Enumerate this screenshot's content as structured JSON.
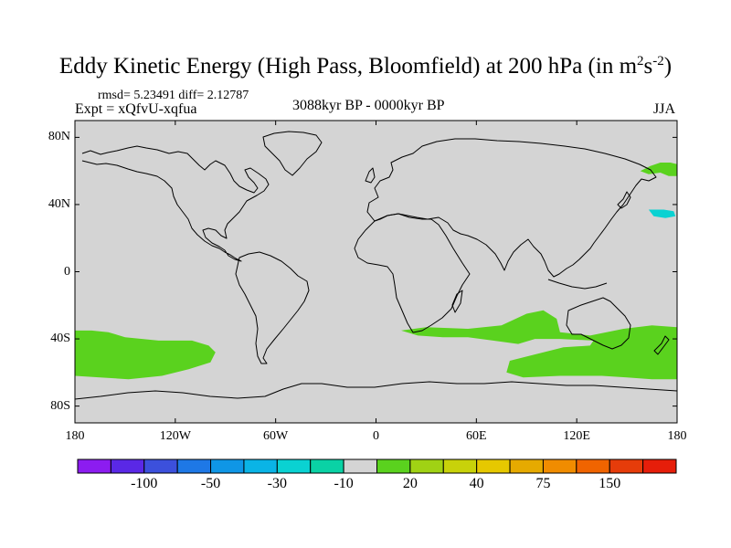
{
  "chart_data": {
    "type": "heatmap",
    "title": "Eddy Kinetic Energy (High Pass, Bloomfield) at 200 hPa (in m",
    "title_unit_sup1": "2",
    "title_unit_mid": "s",
    "title_unit_sup2": "-2",
    "title_unit_end": ")",
    "stats": "rmsd= 5.23491 diff= 2.12787",
    "experiment": "Expt = xQfvU-xqfua",
    "period": "3088kyr BP - 0000kyr BP",
    "season": "JJA",
    "projection": "cylindrical equidistant",
    "lon_range": [
      -180,
      180
    ],
    "lat_range": [
      -90,
      90
    ],
    "x_ticks": [
      {
        "lon": -180,
        "label": "180"
      },
      {
        "lon": -120,
        "label": "120W"
      },
      {
        "lon": -60,
        "label": "60W"
      },
      {
        "lon": 0,
        "label": "0"
      },
      {
        "lon": 60,
        "label": "60E"
      },
      {
        "lon": 120,
        "label": "120E"
      },
      {
        "lon": 180,
        "label": "180"
      }
    ],
    "y_ticks": [
      {
        "lat": 80,
        "label": "80N"
      },
      {
        "lat": 40,
        "label": "40N"
      },
      {
        "lat": 0,
        "label": "0"
      },
      {
        "lat": -40,
        "label": "40S"
      },
      {
        "lat": -80,
        "label": "80S"
      }
    ],
    "background_color": "#d4d4d4",
    "colorbar": {
      "colors": [
        "#8c1cf0",
        "#5a28e6",
        "#3c50dc",
        "#1e78e6",
        "#0f96e6",
        "#0ab4e6",
        "#0ad2d2",
        "#0ad2a5",
        "#d4d4d4",
        "#5ad21e",
        "#a0d214",
        "#c8d20a",
        "#e6c800",
        "#e6aa00",
        "#f08c00",
        "#f06400",
        "#e63c0a",
        "#e61e0a"
      ],
      "labels": [
        {
          "index": 2,
          "label": "-100"
        },
        {
          "index": 4,
          "label": "-50"
        },
        {
          "index": 6,
          "label": "-30"
        },
        {
          "index": 8,
          "label": "-10"
        },
        {
          "index": 10,
          "label": "20"
        },
        {
          "index": 12,
          "label": "40"
        },
        {
          "index": 14,
          "label": "75"
        },
        {
          "index": 16,
          "label": "150"
        }
      ]
    },
    "anomaly_regions": [
      {
        "name": "south-pacific",
        "color": "#5ad21e",
        "value_bin": "10 to 20",
        "outline": [
          [
            -180,
            -35
          ],
          [
            -170,
            -35
          ],
          [
            -160,
            -36
          ],
          [
            -150,
            -39
          ],
          [
            -130,
            -41
          ],
          [
            -110,
            -41
          ],
          [
            -100,
            -44
          ],
          [
            -96,
            -48
          ],
          [
            -99,
            -54
          ],
          [
            -112,
            -58
          ],
          [
            -128,
            -62
          ],
          [
            -148,
            -64
          ],
          [
            -165,
            -63
          ],
          [
            -180,
            -62
          ]
        ]
      },
      {
        "name": "south-indian",
        "color": "#5ad21e",
        "value_bin": "10 to 20",
        "outline": [
          [
            15,
            -35
          ],
          [
            30,
            -33
          ],
          [
            55,
            -34
          ],
          [
            75,
            -32
          ],
          [
            90,
            -25
          ],
          [
            100,
            -23
          ],
          [
            108,
            -28
          ],
          [
            110,
            -36
          ],
          [
            128,
            -38
          ],
          [
            148,
            -34
          ],
          [
            165,
            -32
          ],
          [
            180,
            -33
          ],
          [
            180,
            -64
          ],
          [
            165,
            -64
          ],
          [
            150,
            -63
          ],
          [
            135,
            -62
          ],
          [
            110,
            -62
          ],
          [
            88,
            -63
          ],
          [
            78,
            -60
          ],
          [
            80,
            -53
          ],
          [
            96,
            -49
          ],
          [
            112,
            -45
          ],
          [
            128,
            -44
          ],
          [
            130,
            -41
          ],
          [
            110,
            -40
          ],
          [
            95,
            -40
          ],
          [
            85,
            -43
          ],
          [
            70,
            -41
          ],
          [
            55,
            -39
          ],
          [
            40,
            -39
          ],
          [
            25,
            -38
          ]
        ]
      },
      {
        "name": "kamchatka",
        "color": "#5ad21e",
        "value_bin": "10 to 20",
        "outline": [
          [
            158,
            60
          ],
          [
            164,
            63
          ],
          [
            170,
            65
          ],
          [
            176,
            65
          ],
          [
            180,
            64
          ],
          [
            180,
            57
          ],
          [
            175,
            57
          ],
          [
            170,
            59
          ],
          [
            163,
            58
          ]
        ]
      },
      {
        "name": "northwest-pacific",
        "color": "#0ad2d2",
        "value_bin": "-30 to -10",
        "outline": [
          [
            163,
            37
          ],
          [
            172,
            37
          ],
          [
            178,
            36
          ],
          [
            179,
            33
          ],
          [
            173,
            32
          ],
          [
            166,
            33
          ]
        ]
      }
    ]
  }
}
